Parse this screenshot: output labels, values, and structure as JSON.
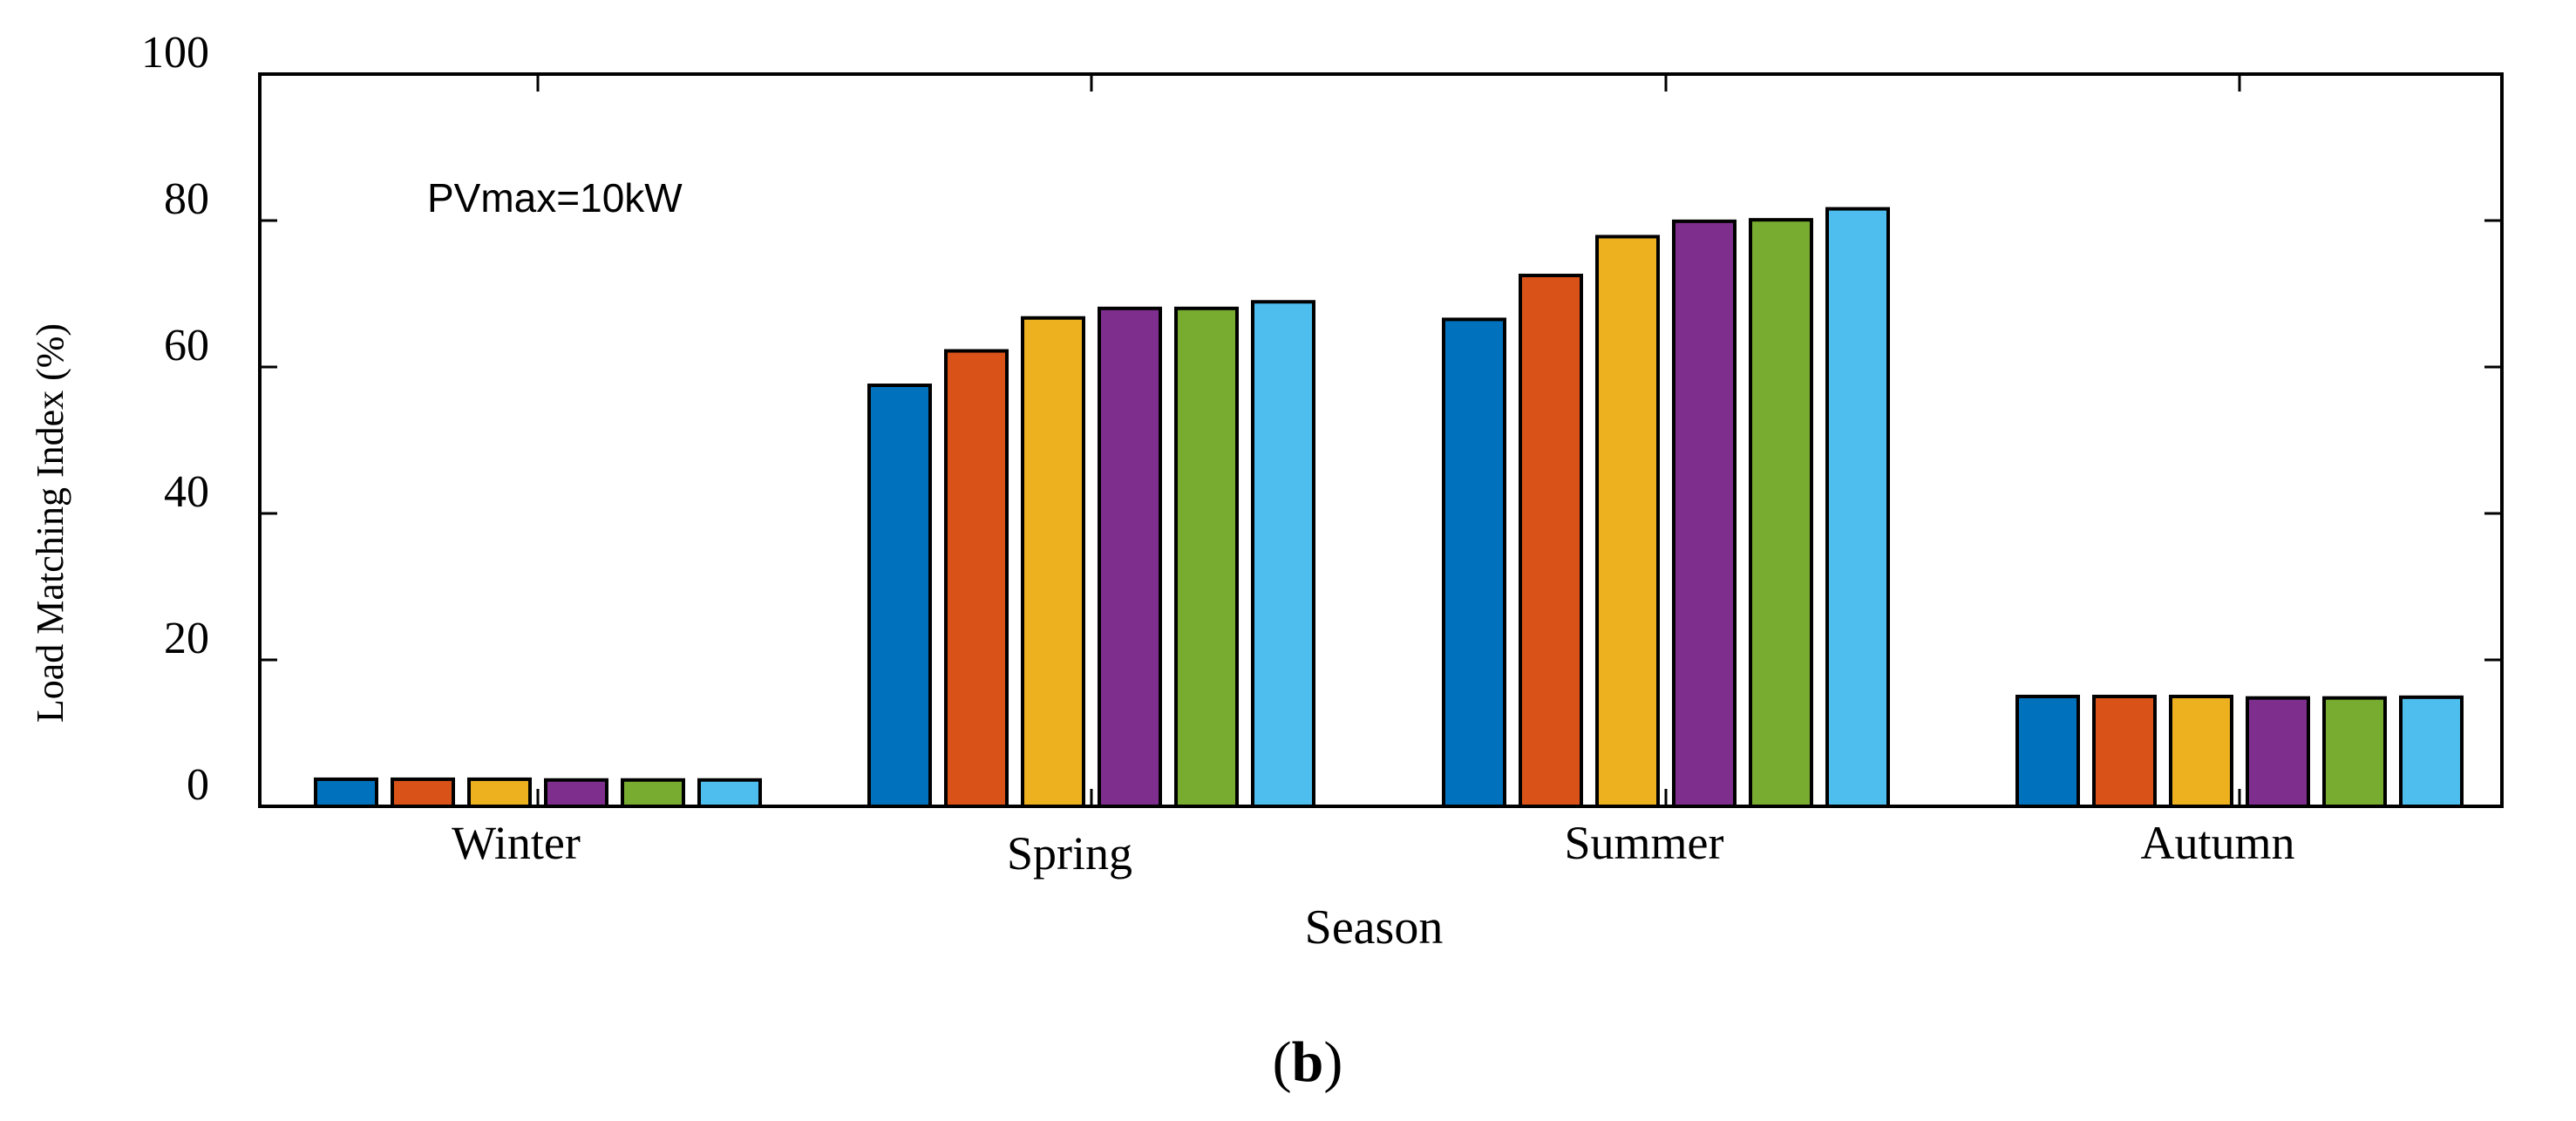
{
  "chart_data": {
    "type": "bar",
    "title": "",
    "xlabel": "Season",
    "ylabel": "Load Matching Index (%)",
    "ylim": [
      0,
      100
    ],
    "yticks": [
      0,
      20,
      40,
      60,
      80,
      100
    ],
    "grid": false,
    "annotation": "PVmax=10kW",
    "categories": [
      "Winter",
      "Spring",
      "Summer",
      "Autumn"
    ],
    "series": [
      {
        "name": "series-1",
        "color": "#0072BD",
        "values": [
          3.7,
          57.5,
          66.5,
          15.0
        ]
      },
      {
        "name": "series-2",
        "color": "#D95319",
        "values": [
          3.7,
          62.2,
          72.5,
          15.0
        ]
      },
      {
        "name": "series-3",
        "color": "#EDB120",
        "values": [
          3.7,
          66.7,
          77.8,
          15.0
        ]
      },
      {
        "name": "series-4",
        "color": "#7E2F8E",
        "values": [
          3.6,
          68.0,
          79.9,
          14.8
        ]
      },
      {
        "name": "series-5",
        "color": "#77AC30",
        "values": [
          3.6,
          68.0,
          80.1,
          14.8
        ]
      },
      {
        "name": "series-6",
        "color": "#4DBEEE",
        "values": [
          3.6,
          68.9,
          81.6,
          14.9
        ]
      }
    ]
  },
  "figure_label": {
    "prefix": "(",
    "letter": "b",
    "suffix": ")"
  }
}
